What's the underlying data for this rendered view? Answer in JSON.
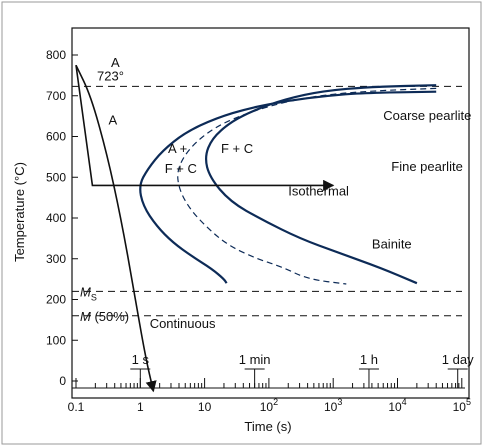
{
  "chart_data": {
    "type": "line",
    "title": "",
    "xlabel": "Time (s)",
    "ylabel": "Temperature (°C)",
    "x_scale": "log",
    "xlim": [
      0.1,
      100000
    ],
    "ylim": [
      -20,
      820
    ],
    "grid": false,
    "x_ticks": [
      {
        "value": 0.1,
        "label": "0.1"
      },
      {
        "value": 1,
        "label": "1"
      },
      {
        "value": 10,
        "label": "10"
      },
      {
        "value": 100,
        "label": "10",
        "sup": "2"
      },
      {
        "value": 1000,
        "label": "10",
        "sup": "3"
      },
      {
        "value": 10000,
        "label": "10",
        "sup": "4"
      },
      {
        "value": 100000,
        "label": "10",
        "sup": "5"
      }
    ],
    "y_ticks": [
      0,
      100,
      200,
      300,
      400,
      500,
      600,
      700,
      800
    ],
    "reference_lines": [
      {
        "y": 723,
        "label": "723°"
      },
      {
        "y": 220,
        "label": "M",
        "sub": "S"
      },
      {
        "y": 160,
        "label": "M (50%)"
      }
    ],
    "time_markers": [
      {
        "x": 1,
        "label": "1 s"
      },
      {
        "x": 60,
        "label": "1 min"
      },
      {
        "x": 3600,
        "label": "1 h"
      },
      {
        "x": 86400,
        "label": "1 day"
      }
    ],
    "series": [
      {
        "role": "start-curve",
        "style": "solid",
        "points": [
          [
            40000,
            710
          ],
          [
            3000,
            707
          ],
          [
            800,
            700
          ],
          [
            200,
            688
          ],
          [
            50,
            670
          ],
          [
            15,
            645
          ],
          [
            5,
            610
          ],
          [
            2.2,
            565
          ],
          [
            1.3,
            520
          ],
          [
            0.95,
            480
          ],
          [
            1.1,
            430
          ],
          [
            1.8,
            380
          ],
          [
            3.2,
            340
          ],
          [
            6.5,
            305
          ],
          [
            13,
            275
          ],
          [
            20,
            250
          ],
          [
            22,
            240
          ]
        ]
      },
      {
        "role": "50-percent-curve",
        "style": "dashed",
        "points": [
          [
            40000,
            718
          ],
          [
            4000,
            712
          ],
          [
            700,
            702
          ],
          [
            180,
            685
          ],
          [
            50,
            660
          ],
          [
            15,
            625
          ],
          [
            6,
            575
          ],
          [
            3.7,
            520
          ],
          [
            4,
            470
          ],
          [
            6,
            420
          ],
          [
            12,
            370
          ],
          [
            25,
            330
          ],
          [
            65,
            300
          ],
          [
            160,
            280
          ],
          [
            400,
            250
          ],
          [
            1600,
            238
          ]
        ]
      },
      {
        "role": "finish-curve",
        "style": "solid",
        "points": [
          [
            40000,
            726
          ],
          [
            4000,
            722
          ],
          [
            700,
            712
          ],
          [
            180,
            692
          ],
          [
            60,
            665
          ],
          [
            25,
            635
          ],
          [
            13,
            595
          ],
          [
            10,
            550
          ],
          [
            12,
            500
          ],
          [
            25,
            440
          ],
          [
            80,
            395
          ],
          [
            300,
            350
          ],
          [
            1200,
            315
          ],
          [
            5000,
            280
          ],
          [
            20000,
            240
          ]
        ]
      },
      {
        "role": "continuous-cooling",
        "style": "solid-arrow",
        "points": [
          [
            0.1,
            775
          ],
          [
            0.17,
            700
          ],
          [
            0.3,
            560
          ],
          [
            0.5,
            400
          ],
          [
            0.8,
            220
          ],
          [
            1.2,
            60
          ],
          [
            1.6,
            -25
          ]
        ]
      },
      {
        "role": "isothermal-path",
        "style": "solid-arrow",
        "points": [
          [
            0.1,
            775
          ],
          [
            0.18,
            480
          ],
          [
            1000,
            480
          ]
        ]
      }
    ],
    "annotations": [
      {
        "text": "A",
        "x": 0.35,
        "y": 770
      },
      {
        "text": "A",
        "x": 0.32,
        "y": 630
      },
      {
        "text": "A +",
        "x": 2.7,
        "y": 560
      },
      {
        "text": "F + C",
        "x": 2.4,
        "y": 510
      },
      {
        "text": "F + C",
        "x": 18,
        "y": 560
      },
      {
        "text": "Coarse pearlite",
        "x": 6000,
        "y": 640
      },
      {
        "text": "Fine pearlite",
        "x": 8000,
        "y": 515
      },
      {
        "text": "Isothermal",
        "x": 200,
        "y": 455
      },
      {
        "text": "Bainite",
        "x": 4000,
        "y": 325
      },
      {
        "text": "Continuous",
        "x": 1.4,
        "y": 130
      }
    ],
    "colors": {
      "transformation_curves": "#0d2b57",
      "axes_and_paths": "#111111"
    }
  }
}
